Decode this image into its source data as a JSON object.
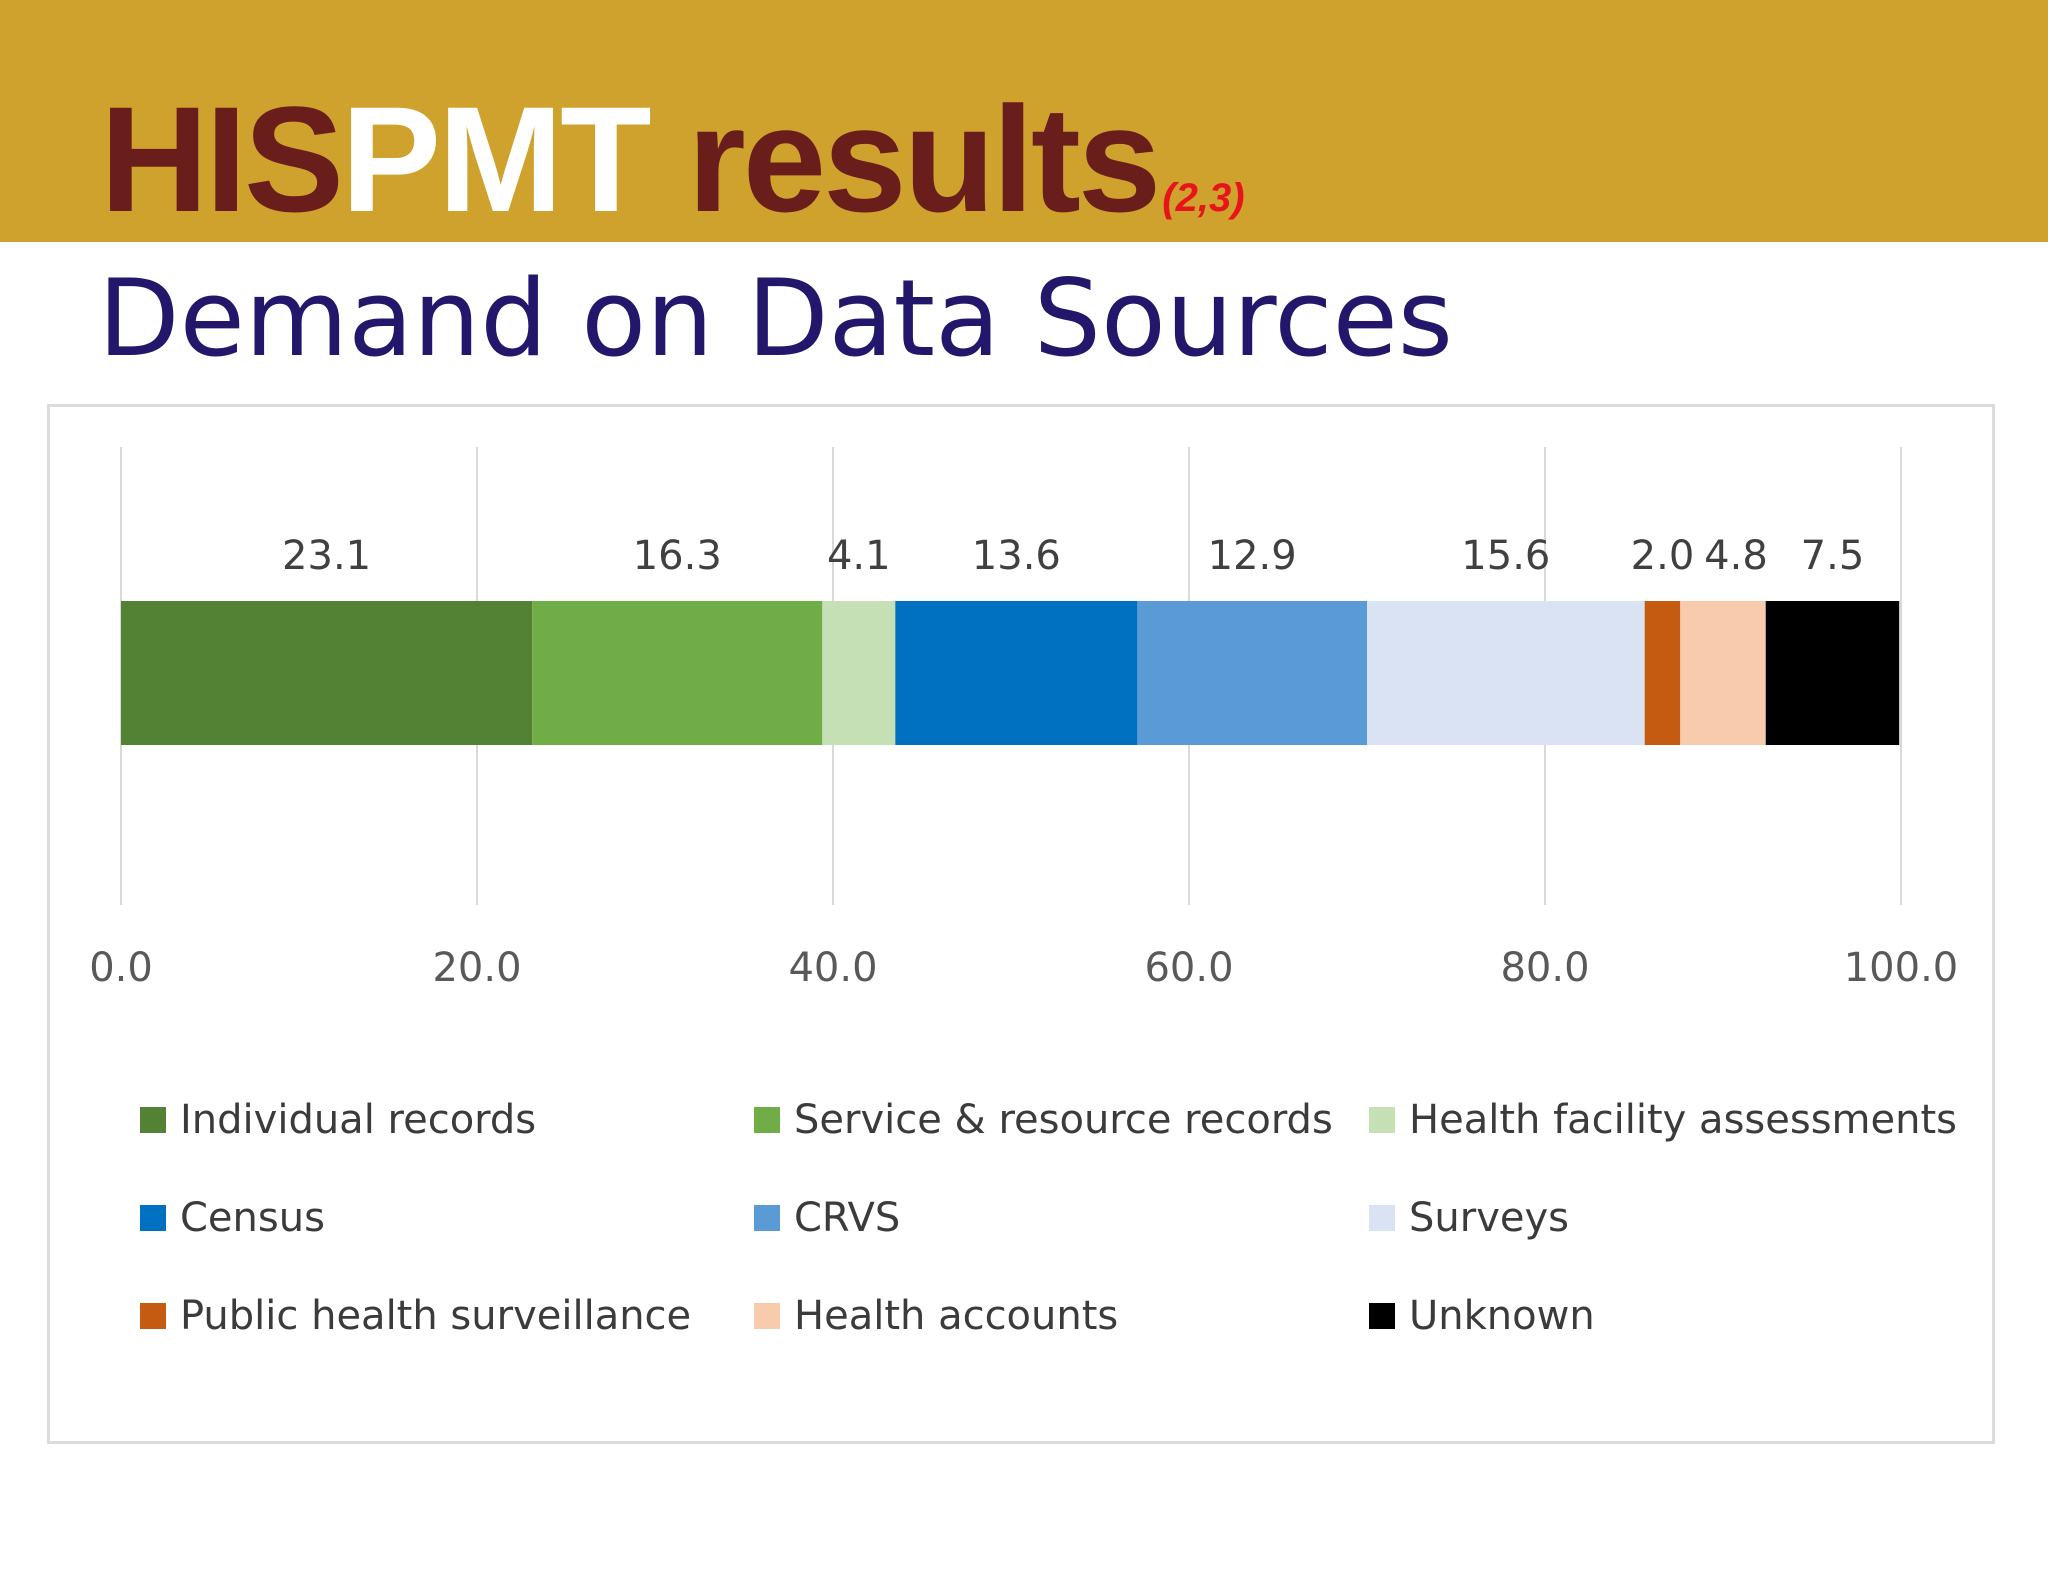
{
  "header": {
    "title_part1": "HIS",
    "title_part2": "PMT",
    "title_part3": " results",
    "title_ref": "(2,3)",
    "subtitle": "Demand on Data Sources"
  },
  "colors": {
    "banner": "#cfa12d",
    "title_dark": "#6a1e1b",
    "title_light": "#ffffff",
    "ref_red": "#e8141c",
    "subtitle": "#22176a"
  },
  "chart_data": {
    "type": "bar",
    "orientation": "horizontal",
    "stacked": true,
    "title": "",
    "xlabel": "",
    "ylabel": "",
    "xlim": [
      0,
      100
    ],
    "x_ticks": [
      "0.0",
      "20.0",
      "40.0",
      "60.0",
      "80.0",
      "100.0"
    ],
    "grid": true,
    "legend_position": "bottom",
    "series": [
      {
        "name": "Individual records",
        "value": 23.1,
        "label": "23.1",
        "color": "#548235"
      },
      {
        "name": "Service & resource records",
        "value": 16.3,
        "label": "16.3",
        "color": "#70ad47"
      },
      {
        "name": "Health facility assessments",
        "value": 4.1,
        "label": "4.1",
        "color": "#c5e0b4"
      },
      {
        "name": "Census",
        "value": 13.6,
        "label": "13.6",
        "color": "#0070c0"
      },
      {
        "name": "CRVS",
        "value": 12.9,
        "label": "12.9",
        "color": "#5b9bd5"
      },
      {
        "name": "Surveys",
        "value": 15.6,
        "label": "15.6",
        "color": "#dae3f3"
      },
      {
        "name": "Public health surveillance",
        "value": 2.0,
        "label": "2.0",
        "color": "#c55a11"
      },
      {
        "name": "Health accounts",
        "value": 4.8,
        "label": "4.8",
        "color": "#f8cbad"
      },
      {
        "name": "Unknown",
        "value": 7.5,
        "label": "7.5",
        "color": "#000000"
      }
    ]
  }
}
